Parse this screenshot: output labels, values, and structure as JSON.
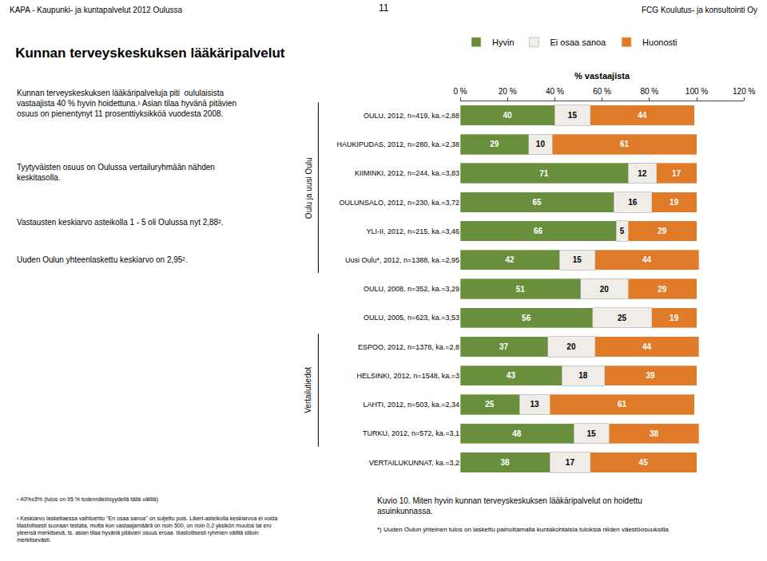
{
  "chart_data": {
    "type": "bar",
    "orientation": "horizontal",
    "stacked": true,
    "title": "Kunnan terveyskeskuksen lääkäripalvelut",
    "xlabel": "% vastaajista",
    "categories": [
      "OULU, 2012, n=419, ka.=2,88",
      "HAUKIPUDAS, 2012, n=280, ka.=2,38",
      "KIIMINKI, 2012, n=244, ka.=3,83",
      "OULUNSALO, 2012, n=230, ka.=3,72",
      "YLI-II, 2012, n=215, ka.=3,46",
      "Uusi Oulu*, 2012, n=1388, ka.=2,95",
      "OULU, 2008, n=352, ka.=3,29",
      "OULU, 2005, n=623, ka.=3,53",
      "ESPOO, 2012, n=1378, ka.=2,8",
      "HELSINKI, 2012, n=1548, ka.=3",
      "LAHTI, 2012, n=503, ka.=2,34",
      "TURKU, 2012, n=572, ka.=3,1",
      "VERTAILUKUNNAT, ka.=3,2"
    ],
    "series": [
      {
        "name": "Hyvin",
        "color": "#6a8f3c",
        "values": [
          40,
          29,
          71,
          65,
          66,
          42,
          51,
          56,
          37,
          43,
          25,
          48,
          38
        ]
      },
      {
        "name": "Ei osaa sanoa",
        "color": "#f0ede8",
        "values": [
          15,
          10,
          12,
          16,
          5,
          15,
          20,
          25,
          20,
          18,
          13,
          15,
          17
        ]
      },
      {
        "name": "Huonosti",
        "color": "#e07b2a",
        "values": [
          44,
          61,
          17,
          19,
          29,
          44,
          29,
          19,
          44,
          39,
          61,
          38,
          45
        ]
      }
    ],
    "xlim": [
      0,
      120
    ],
    "xticks": [
      {
        "value": 0,
        "label": "0 %"
      },
      {
        "value": 20,
        "label": "20 %"
      },
      {
        "value": 40,
        "label": "40 %"
      },
      {
        "value": 60,
        "label": "60 %"
      },
      {
        "value": 80,
        "label": "80 %"
      },
      {
        "value": 100,
        "label": "100 %"
      },
      {
        "value": 120,
        "label": "120 %"
      }
    ],
    "data_labels": true,
    "grid": false,
    "legend": "top",
    "annotations": [
      {
        "text": "KAPA - Kaupunki- ja kuntapalvelut 2012 Oulussa"
      },
      {
        "text": "FCG Koulutus- ja konsultointi Oy"
      },
      {
        "text": "11"
      },
      {
        "text": "Kunnan terveyskeskuksen lääkäripalveluja piti  oululaisista\nvastaajista 40 % hyvin hoidettuna.¹ Asian tilaa hyvänä pitävien\nosuus on pienentynyt 11 prosenttiyksikköä vuodesta 2008."
      },
      {
        "text": "Tyytyväisten osuus on Oulussa vertailuryhmään nähden\nkeskitasolla."
      },
      {
        "text": "Vastausten keskiarvo asteikolla 1 - 5 oli Oulussa nyt 2,88²."
      },
      {
        "text": "Uuden Oulun yhteenlaskettu keskiarvo on 2,95²."
      },
      {
        "text": "¹ 40%±5% (tulos on 95 % todennäköisyydellä tällä välillä)"
      },
      {
        "text": "² Keskiarvo laskettaessa vaihtoehto \"En osaa sanoa\" on suljettu pois. Likert-asteikolla keskiarvoa ei voida\ntilastollisesti suoraan testata, mutta kun vastaajamäärä on noin 500, on noin 0,2 yksikön muutos tai ero\nyleensä merkitsevä, ts. asian tilaa hyvänä pitävien osuus eroaa  tilastollisesti ryhmien välillä silloin\nmerkitsevästi."
      },
      {
        "text": "Kuvio 10. Miten hyvin kunnan terveyskeskuksen lääkäripalvelut on hoidettu\nasuinkunnassa."
      },
      {
        "text": "*) Uuden Oulun yhteinen tulos on laskettu painottamalla kuntakohtaisia tuloksia niiden väestöosuuksilla"
      },
      {
        "text": "Oulu ja uusi Oulu"
      },
      {
        "text": "Vertailutiedot"
      }
    ]
  }
}
